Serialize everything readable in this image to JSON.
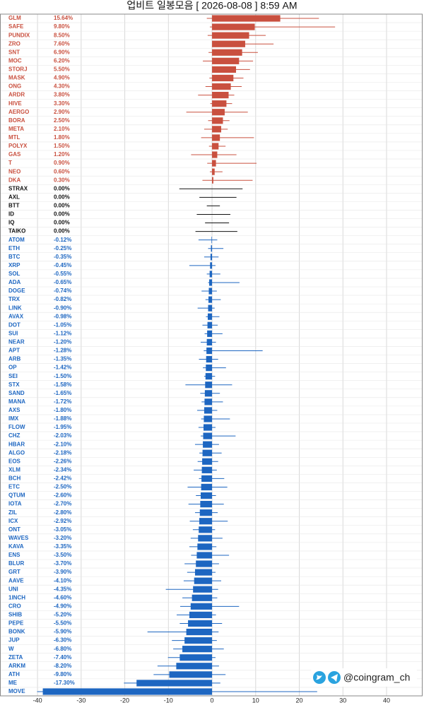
{
  "chart_data": {
    "type": "range-bar",
    "title": "업비트 일봉모음 [ 2026-08-08 ]  8:59 AM",
    "watermark": "@coingram_ch",
    "categories": [
      "GLM",
      "SAFE",
      "PUNDIX",
      "ZRO",
      "SNT",
      "MOC",
      "STORJ",
      "MASK",
      "ONG",
      "ARDR",
      "HIVE",
      "AERGO",
      "BORA",
      "META",
      "MTL",
      "POLYX",
      "GAS",
      "T",
      "NEO",
      "DKA",
      "STRAX",
      "AXL",
      "BTT",
      "ID",
      "IQ",
      "TAIKO",
      "ATOM",
      "ETH",
      "BTC",
      "XRP",
      "SOL",
      "ADA",
      "DOGE",
      "TRX",
      "LINK",
      "AVAX",
      "DOT",
      "SUI",
      "NEAR",
      "APT",
      "ARB",
      "OP",
      "SEI",
      "STX",
      "SAND",
      "MANA",
      "AXS",
      "IMX",
      "FLOW",
      "CHZ",
      "HBAR",
      "ALGO",
      "EOS",
      "XLM",
      "BCH",
      "ETC",
      "QTUM",
      "IOTA",
      "ZIL",
      "ICX",
      "ONT",
      "WAVES",
      "KAVA",
      "ENS",
      "BLUR",
      "GRT",
      "AAVE",
      "UNI",
      "1INCH",
      "CRO",
      "SHIB",
      "PEPE",
      "BONK",
      "JUP",
      "W",
      "ZETA",
      "ARKM",
      "ATH",
      "ME",
      "MOVE"
    ],
    "values": [
      15.64,
      9.8,
      8.5,
      7.6,
      6.9,
      6.2,
      5.5,
      4.9,
      4.3,
      3.8,
      3.3,
      2.9,
      2.5,
      2.1,
      1.8,
      1.5,
      1.2,
      0.9,
      0.6,
      0.3,
      0,
      0,
      0,
      0,
      0,
      0,
      -0.12,
      -0.25,
      -0.35,
      -0.45,
      -0.55,
      -0.65,
      -0.74,
      -0.82,
      -0.9,
      -0.98,
      -1.05,
      -1.12,
      -1.2,
      -1.28,
      -1.35,
      -1.42,
      -1.5,
      -1.58,
      -1.65,
      -1.72,
      -1.8,
      -1.88,
      -1.95,
      -2.03,
      -2.1,
      -2.18,
      -2.26,
      -2.34,
      -2.42,
      -2.5,
      -2.6,
      -2.7,
      -2.8,
      -2.92,
      -3.05,
      -3.2,
      -3.35,
      -3.5,
      -3.7,
      -3.9,
      -4.1,
      -4.35,
      -4.6,
      -4.9,
      -5.2,
      -5.5,
      -5.9,
      -6.3,
      -6.8,
      -7.4,
      -8.2,
      -9.8,
      -17.3,
      -38.79
    ],
    "value_labels": [
      "15.64%",
      "9.80%",
      "8.50%",
      "7.60%",
      "6.90%",
      "6.20%",
      "5.50%",
      "4.90%",
      "4.30%",
      "3.80%",
      "3.30%",
      "2.90%",
      "2.50%",
      "2.10%",
      "1.80%",
      "1.50%",
      "1.20%",
      "0.90%",
      "0.60%",
      "0.30%",
      "0.00%",
      "0.00%",
      "0.00%",
      "0.00%",
      "0.00%",
      "0.00%",
      "-0.12%",
      "-0.25%",
      "-0.35%",
      "-0.45%",
      "-0.55%",
      "-0.65%",
      "-0.74%",
      "-0.82%",
      "-0.90%",
      "-0.98%",
      "-1.05%",
      "-1.12%",
      "-1.20%",
      "-1.28%",
      "-1.35%",
      "-1.42%",
      "-1.50%",
      "-1.58%",
      "-1.65%",
      "-1.72%",
      "-1.80%",
      "-1.88%",
      "-1.95%",
      "-2.03%",
      "-2.10%",
      "-2.18%",
      "-2.26%",
      "-2.34%",
      "-2.42%",
      "-2.50%",
      "-2.60%",
      "-2.70%",
      "-2.80%",
      "-2.92%",
      "-3.05%",
      "-3.20%",
      "-3.35%",
      "-3.50%",
      "-3.70%",
      "-3.90%",
      "-4.10%",
      "-4.35%",
      "-4.60%",
      "-4.90%",
      "-5.20%",
      "-5.50%",
      "-5.90%",
      "-6.30%",
      "-6.80%",
      "-7.40%",
      "-8.20%",
      "-9.80%",
      "-17.30%",
      "-38.79%"
    ],
    "lows": [
      -1.2,
      -0.5,
      -1.0,
      0.2,
      -0.8,
      -2.1,
      0.0,
      -0.6,
      -1.5,
      -3.2,
      -0.4,
      -5.9,
      -0.9,
      -1.8,
      -2.5,
      -0.7,
      -4.8,
      -1.1,
      -0.5,
      -2.2,
      -7.5,
      -2.9,
      -1.2,
      -3.5,
      -1.6,
      -3.8,
      -3.1,
      -0.9,
      -1.8,
      -5.2,
      -1.2,
      -0.9,
      -2.4,
      -1.5,
      -3.3,
      -1.4,
      -2.2,
      -1.7,
      -2.6,
      -1.9,
      -3.0,
      -2.1,
      -1.8,
      -6.1,
      -2.7,
      -2.4,
      -3.4,
      -2.5,
      -3.1,
      -2.6,
      -3.9,
      -2.9,
      -3.3,
      -4.2,
      -3.0,
      -5.6,
      -3.7,
      -5.4,
      -3.9,
      -5.1,
      -4.4,
      -4.9,
      -5.2,
      -4.8,
      -6.3,
      -5.7,
      -6.5,
      -10.6,
      -6.8,
      -7.3,
      -8.1,
      -7.4,
      -14.8,
      -9.2,
      -8.9,
      -10.1,
      -12.5,
      -13.4,
      -20.2,
      -40.1
    ],
    "highs": [
      24.5,
      28.2,
      12.3,
      14.1,
      10.5,
      9.4,
      8.7,
      7.2,
      6.8,
      5.1,
      4.6,
      8.2,
      4.0,
      3.6,
      9.6,
      3.1,
      5.6,
      10.2,
      2.4,
      9.3,
      7.0,
      5.6,
      1.8,
      4.2,
      3.9,
      5.8,
      1.2,
      2.6,
      1.5,
      0.8,
      1.9,
      6.3,
      1.1,
      2.0,
      0.6,
      1.7,
      1.3,
      2.4,
      0.9,
      11.6,
      1.4,
      3.2,
      0.7,
      4.6,
      1.8,
      2.5,
      1.2,
      4.1,
      0.8,
      5.4,
      1.6,
      2.2,
      1.4,
      1.1,
      2.8,
      3.5,
      0.9,
      2.7,
      1.3,
      3.6,
      0.7,
      2.4,
      1.0,
      3.9,
      1.6,
      0.8,
      2.1,
      1.4,
      1.2,
      6.2,
      0.9,
      2.3,
      1.5,
      1.1,
      2.7,
      0.8,
      1.6,
      3.1,
      1.9,
      24.1
    ],
    "colors": {
      "up": "#c9503f",
      "flat": "#111111",
      "down": "#1d66c1"
    },
    "xlim": [
      -48.6,
      48.1
    ],
    "xticks": [
      -40,
      -30,
      -20,
      -10,
      0,
      10,
      20,
      30,
      40
    ],
    "grid": true
  }
}
